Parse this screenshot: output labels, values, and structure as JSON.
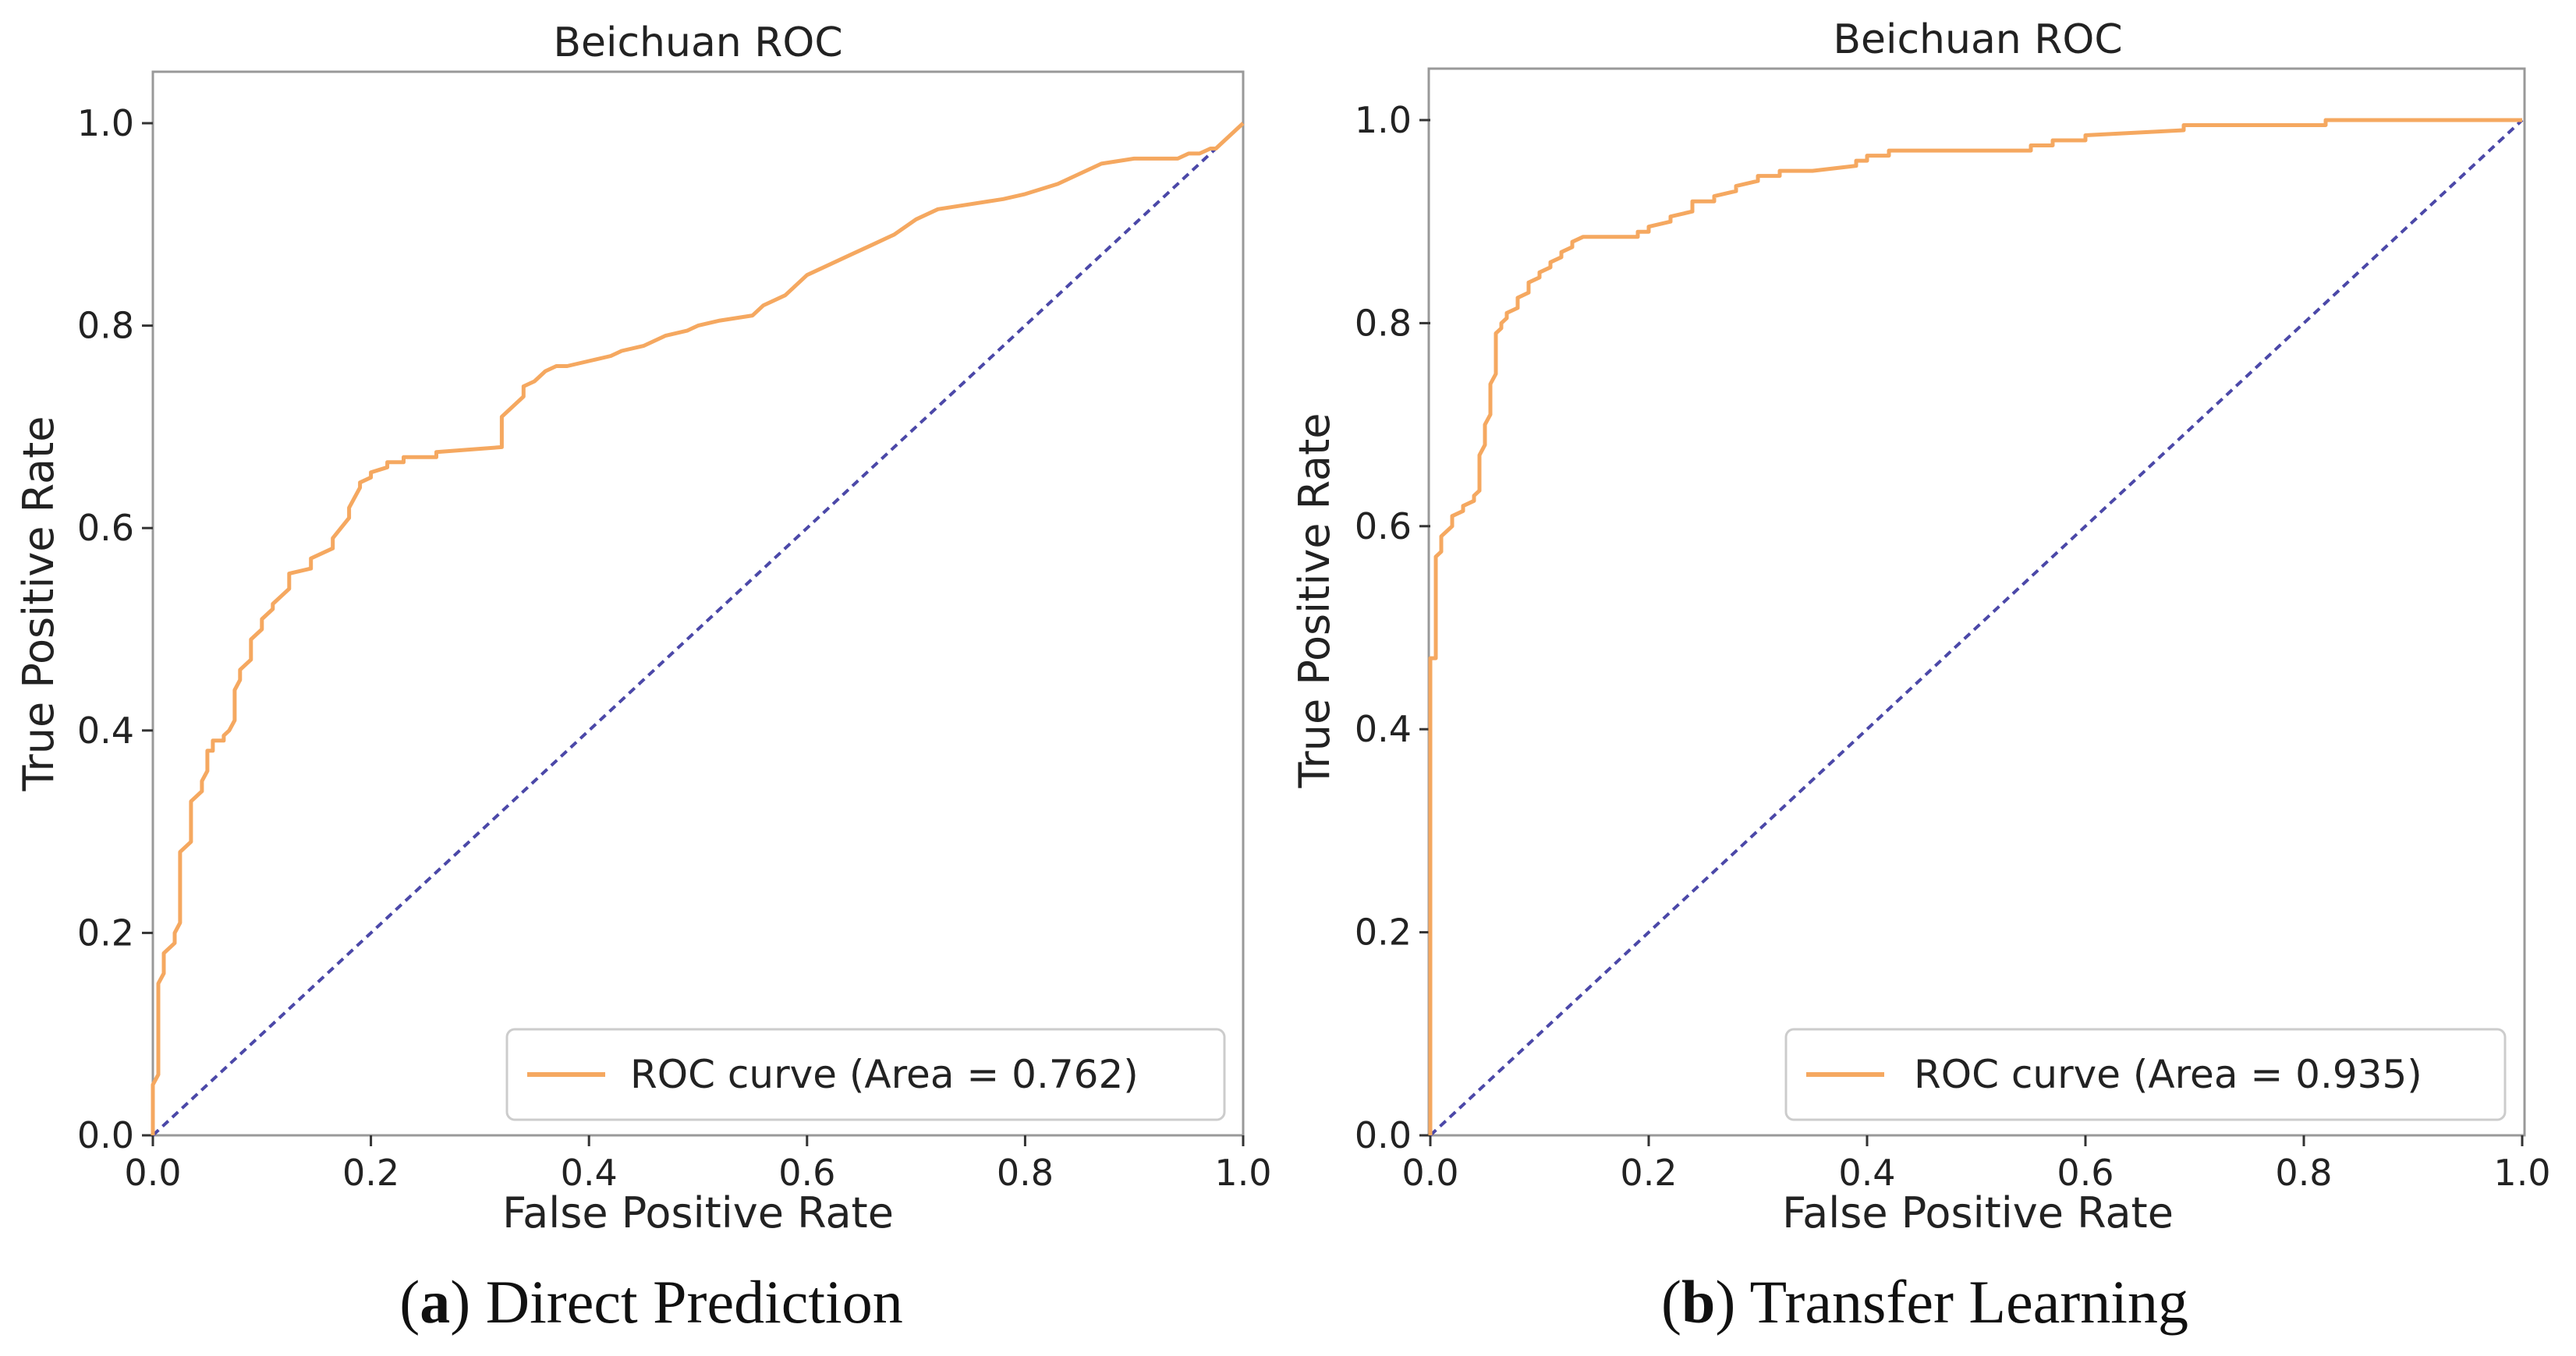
{
  "colors": {
    "roc": "#f5a860",
    "diagonal": "#4b48a8",
    "axes": "#333333",
    "frame": "#999999"
  },
  "chart_data": [
    {
      "type": "line",
      "panel": "a",
      "title": "Beichuan ROC",
      "xlabel": "False Positive Rate",
      "ylabel": "True Positive Rate",
      "xlim": [
        0.0,
        1.0
      ],
      "ylim": [
        0.0,
        1.0
      ],
      "xticks": [
        "0.0",
        "0.2",
        "0.4",
        "0.6",
        "0.8",
        "1.0"
      ],
      "yticks": [
        "0.0",
        "0.2",
        "0.4",
        "0.6",
        "0.8",
        "1.0"
      ],
      "legend": {
        "label": "ROC curve (Area = 0.762)",
        "position": "lower right"
      },
      "caption": {
        "letter": "a",
        "text": "Direct Prediction"
      },
      "series": [
        {
          "name": "ROC curve (Area = 0.762)",
          "style": "solid",
          "x": [
            0.0,
            0.0,
            0.005,
            0.005,
            0.01,
            0.01,
            0.02,
            0.02,
            0.025,
            0.025,
            0.035,
            0.035,
            0.045,
            0.045,
            0.05,
            0.05,
            0.055,
            0.055,
            0.065,
            0.065,
            0.07,
            0.075,
            0.075,
            0.08,
            0.08,
            0.09,
            0.09,
            0.1,
            0.1,
            0.11,
            0.11,
            0.125,
            0.125,
            0.145,
            0.145,
            0.165,
            0.165,
            0.18,
            0.18,
            0.19,
            0.19,
            0.2,
            0.2,
            0.215,
            0.215,
            0.23,
            0.23,
            0.26,
            0.26,
            0.32,
            0.32,
            0.34,
            0.34,
            0.35,
            0.355,
            0.36,
            0.37,
            0.38,
            0.4,
            0.42,
            0.43,
            0.45,
            0.46,
            0.47,
            0.49,
            0.5,
            0.52,
            0.55,
            0.56,
            0.58,
            0.59,
            0.6,
            0.62,
            0.64,
            0.66,
            0.68,
            0.7,
            0.72,
            0.75,
            0.78,
            0.8,
            0.83,
            0.85,
            0.86,
            0.87,
            0.9,
            0.94,
            0.95,
            0.96,
            0.97,
            0.975,
            0.98,
            0.985,
            0.99,
            1.0,
            1.0
          ],
          "y": [
            0.0,
            0.05,
            0.06,
            0.15,
            0.16,
            0.18,
            0.19,
            0.2,
            0.21,
            0.28,
            0.29,
            0.33,
            0.34,
            0.35,
            0.36,
            0.38,
            0.38,
            0.39,
            0.39,
            0.395,
            0.4,
            0.41,
            0.44,
            0.45,
            0.46,
            0.47,
            0.49,
            0.5,
            0.51,
            0.52,
            0.525,
            0.54,
            0.555,
            0.56,
            0.57,
            0.58,
            0.59,
            0.61,
            0.62,
            0.64,
            0.645,
            0.65,
            0.655,
            0.66,
            0.665,
            0.665,
            0.67,
            0.67,
            0.675,
            0.68,
            0.71,
            0.73,
            0.74,
            0.745,
            0.75,
            0.755,
            0.76,
            0.76,
            0.765,
            0.77,
            0.775,
            0.78,
            0.785,
            0.79,
            0.795,
            0.8,
            0.805,
            0.81,
            0.82,
            0.83,
            0.84,
            0.85,
            0.86,
            0.87,
            0.88,
            0.89,
            0.905,
            0.915,
            0.92,
            0.925,
            0.93,
            0.94,
            0.95,
            0.955,
            0.96,
            0.965,
            0.965,
            0.97,
            0.97,
            0.975,
            0.975,
            0.98,
            0.985,
            0.99,
            1.0,
            1.0
          ]
        },
        {
          "name": "chance",
          "style": "dashed",
          "x": [
            0.0,
            1.0
          ],
          "y": [
            0.0,
            1.0
          ]
        }
      ]
    },
    {
      "type": "line",
      "panel": "b",
      "title": "Beichuan ROC",
      "xlabel": "False Positive Rate",
      "ylabel": "True Positive Rate",
      "xlim": [
        0.0,
        1.0
      ],
      "ylim": [
        0.0,
        1.0
      ],
      "xticks": [
        "0.0",
        "0.2",
        "0.4",
        "0.6",
        "0.8",
        "1.0"
      ],
      "yticks": [
        "0.0",
        "0.2",
        "0.4",
        "0.6",
        "0.8",
        "1.0"
      ],
      "legend": {
        "label": "ROC curve (Area = 0.935)",
        "position": "lower right"
      },
      "caption": {
        "letter": "b",
        "text": "Transfer Learning"
      },
      "series": [
        {
          "name": "ROC curve (Area = 0.935)",
          "style": "solid",
          "x": [
            0.0,
            0.0,
            0.005,
            0.005,
            0.01,
            0.01,
            0.02,
            0.02,
            0.03,
            0.03,
            0.04,
            0.04,
            0.045,
            0.045,
            0.05,
            0.05,
            0.055,
            0.055,
            0.06,
            0.06,
            0.065,
            0.065,
            0.07,
            0.07,
            0.08,
            0.08,
            0.09,
            0.09,
            0.1,
            0.1,
            0.11,
            0.11,
            0.12,
            0.12,
            0.13,
            0.13,
            0.14,
            0.14,
            0.19,
            0.19,
            0.2,
            0.2,
            0.22,
            0.22,
            0.24,
            0.24,
            0.26,
            0.26,
            0.28,
            0.28,
            0.3,
            0.3,
            0.32,
            0.32,
            0.35,
            0.35,
            0.39,
            0.39,
            0.4,
            0.4,
            0.42,
            0.42,
            0.55,
            0.55,
            0.57,
            0.57,
            0.6,
            0.6,
            0.69,
            0.69,
            0.82,
            0.82,
            1.0
          ],
          "y": [
            0.0,
            0.47,
            0.47,
            0.57,
            0.575,
            0.59,
            0.6,
            0.61,
            0.615,
            0.62,
            0.625,
            0.63,
            0.635,
            0.67,
            0.68,
            0.7,
            0.71,
            0.74,
            0.75,
            0.79,
            0.795,
            0.8,
            0.805,
            0.81,
            0.815,
            0.825,
            0.83,
            0.84,
            0.845,
            0.85,
            0.855,
            0.86,
            0.865,
            0.87,
            0.875,
            0.88,
            0.885,
            0.885,
            0.885,
            0.89,
            0.89,
            0.895,
            0.9,
            0.905,
            0.91,
            0.92,
            0.92,
            0.925,
            0.93,
            0.935,
            0.94,
            0.945,
            0.945,
            0.95,
            0.95,
            0.95,
            0.955,
            0.96,
            0.96,
            0.965,
            0.965,
            0.97,
            0.97,
            0.975,
            0.975,
            0.98,
            0.98,
            0.985,
            0.99,
            0.995,
            0.995,
            1.0,
            1.0
          ]
        },
        {
          "name": "chance",
          "style": "dashed",
          "x": [
            0.0,
            1.0
          ],
          "y": [
            0.0,
            1.0
          ]
        }
      ]
    }
  ]
}
